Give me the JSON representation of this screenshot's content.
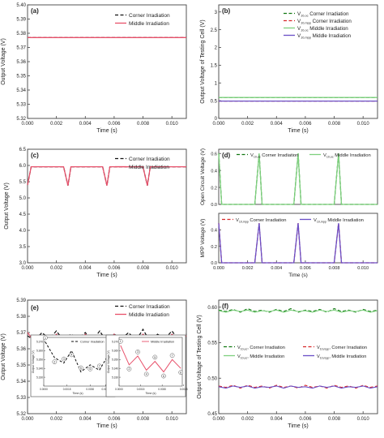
{
  "colors": {
    "corner": "#111111",
    "middle_red": "#e8506a",
    "voc_corner": "#117711",
    "voc_middle": "#7ed07e",
    "vmpp_corner": "#d62728",
    "vmpp_middle": "#6a4fc7",
    "axis": "#444444"
  },
  "chart_data": [
    {
      "panel": "(a)",
      "type": "line",
      "xlabel": "Time (s)",
      "ylabel": "Output Voltage (V)",
      "xlim": [
        0,
        0.011
      ],
      "ylim": [
        5.32,
        5.4
      ],
      "xticks": [
        "0.000",
        "0.002",
        "0.004",
        "0.006",
        "0.008",
        "0.010"
      ],
      "yticks": [
        "5.32",
        "5.33",
        "5.34",
        "5.35",
        "5.36",
        "5.37",
        "5.38",
        "5.39",
        "5.40"
      ],
      "legend_position": "top-right",
      "series": [
        {
          "name": "Corner Irradiation",
          "style": "dash",
          "color": "#111111",
          "x": [
            0,
            0.011
          ],
          "y": [
            5.377,
            5.377
          ]
        },
        {
          "name": "Middle Irradiation",
          "style": "solid",
          "color": "#e8506a",
          "x": [
            0,
            0.011
          ],
          "y": [
            5.377,
            5.377
          ]
        }
      ]
    },
    {
      "panel": "(b)",
      "type": "line",
      "xlabel": "Time (s)",
      "ylabel": "Output Voltage of Testing Cell (V)",
      "xlim": [
        0,
        0.011
      ],
      "ylim": [
        0,
        3.2
      ],
      "xticks": [
        "0.000",
        "0.002",
        "0.004",
        "0.006",
        "0.008",
        "0.010"
      ],
      "yticks": [
        "0",
        "0.5",
        "1",
        "1.5",
        "2",
        "2.5",
        "3"
      ],
      "legend_position": "top-right",
      "series": [
        {
          "name": "V",
          "sub": "10,oc",
          "suffix": " Corner Irradiation",
          "style": "dash",
          "color": "#117711",
          "x": [
            0,
            0.011
          ],
          "y": [
            0.59,
            0.59
          ]
        },
        {
          "name": "V",
          "sub": "10,mpp",
          "suffix": " Corner Irradiation",
          "style": "dash",
          "color": "#d62728",
          "x": [
            0,
            0.011
          ],
          "y": [
            0.49,
            0.49
          ]
        },
        {
          "name": "V",
          "sub": "10,oc",
          "suffix": " Middle Irradiation",
          "style": "solid",
          "color": "#7ed07e",
          "x": [
            0,
            0.011
          ],
          "y": [
            0.59,
            0.59
          ]
        },
        {
          "name": "V",
          "sub": "10,mpp",
          "suffix": " Middle Irradiation",
          "style": "solid",
          "color": "#6a4fc7",
          "x": [
            0,
            0.011
          ],
          "y": [
            0.49,
            0.49
          ]
        }
      ]
    },
    {
      "panel": "(c)",
      "type": "line",
      "xlabel": "Time (s)",
      "ylabel": "Output Voltage (V)",
      "xlim": [
        0,
        0.011
      ],
      "ylim": [
        3.0,
        6.5
      ],
      "xticks": [
        "0.000",
        "0.002",
        "0.004",
        "0.006",
        "0.008",
        "0.010"
      ],
      "yticks": [
        "3.0",
        "3.5",
        "4.0",
        "4.5",
        "5.0",
        "5.5",
        "6.0",
        "6.5"
      ],
      "legend_position": "top-right",
      "series": [
        {
          "name": "Corner Irradiation",
          "style": "dash",
          "color": "#111111",
          "x": [
            0,
            0.00025,
            0.0025,
            0.0028,
            0.003,
            0.0052,
            0.0055,
            0.0057,
            0.008,
            0.0083,
            0.0085,
            0.011
          ],
          "y": [
            5.4,
            5.96,
            5.96,
            5.38,
            5.96,
            5.96,
            5.38,
            5.96,
            5.96,
            5.38,
            5.96,
            5.96
          ]
        },
        {
          "name": "Middle Irradiation",
          "style": "solid",
          "color": "#e8506a",
          "x": [
            0,
            0.00025,
            0.0025,
            0.0028,
            0.003,
            0.0052,
            0.0055,
            0.0057,
            0.008,
            0.0083,
            0.0085,
            0.011
          ],
          "y": [
            5.4,
            5.96,
            5.96,
            5.38,
            5.96,
            5.96,
            5.38,
            5.96,
            5.96,
            5.38,
            5.96,
            5.96
          ]
        }
      ]
    },
    {
      "panel": "(d)",
      "type": "line",
      "xlabel": "",
      "ylabel": "Open Circuit Voltage (V)",
      "xlim": [
        0,
        0.011
      ],
      "ylim": [
        0,
        0.65
      ],
      "yticks": [
        "0.0",
        "0.2",
        "0.4",
        "0.6"
      ],
      "legend_position": "top",
      "series": [
        {
          "name": "V",
          "sub": "10,oc",
          "suffix": " Corner Irradiation",
          "style": "dash",
          "color": "#117711",
          "x": [
            0,
            0.0002,
            0.0025,
            0.0028,
            0.003,
            0.0052,
            0.0055,
            0.0057,
            0.008,
            0.0083,
            0.0085,
            0.011
          ],
          "y": [
            0.6,
            0,
            0,
            0.6,
            0,
            0,
            0.6,
            0,
            0,
            0.6,
            0,
            0
          ]
        },
        {
          "name": "V",
          "sub": "10,oc",
          "suffix": " Middle Irradiation",
          "style": "solid",
          "color": "#7ed07e",
          "x": [
            0,
            0.0002,
            0.0025,
            0.0028,
            0.003,
            0.0052,
            0.0055,
            0.0057,
            0.008,
            0.0083,
            0.0085,
            0.011
          ],
          "y": [
            0.6,
            0,
            0,
            0.6,
            0,
            0,
            0.6,
            0,
            0,
            0.6,
            0,
            0
          ]
        }
      ]
    },
    {
      "panel": "(d) lower",
      "type": "line",
      "xlabel": "Time (s)",
      "ylabel": "MPP Voltage (V)",
      "xlim": [
        0,
        0.011
      ],
      "ylim": [
        0,
        0.6
      ],
      "xticks": [
        "0.000",
        "0.002",
        "0.004",
        "0.006",
        "0.008",
        "0.010"
      ],
      "yticks": [
        "0.0",
        "0.2",
        "0.4"
      ],
      "legend_position": "top",
      "series": [
        {
          "name": "V",
          "sub": "10,mpp",
          "suffix": " Corner Irradiation",
          "style": "dash",
          "color": "#d62728",
          "x": [
            0,
            0.0002,
            0.0025,
            0.0028,
            0.003,
            0.0052,
            0.0055,
            0.0057,
            0.008,
            0.0083,
            0.0085,
            0.011
          ],
          "y": [
            0.48,
            0,
            0,
            0.48,
            0,
            0,
            0.48,
            0,
            0,
            0.48,
            0,
            0
          ]
        },
        {
          "name": "V",
          "sub": "10,mpp",
          "suffix": " Middle Irradiation",
          "style": "solid",
          "color": "#6a4fc7",
          "x": [
            0,
            0.0002,
            0.0025,
            0.0028,
            0.003,
            0.0052,
            0.0055,
            0.0057,
            0.008,
            0.0083,
            0.0085,
            0.011
          ],
          "y": [
            0.48,
            0,
            0,
            0.48,
            0,
            0,
            0.48,
            0,
            0,
            0.48,
            0,
            0
          ]
        }
      ]
    },
    {
      "panel": "(e)",
      "type": "line",
      "xlabel": "Time (s)",
      "ylabel": "Output Voltage (V)",
      "xlim": [
        0,
        0.011
      ],
      "ylim": [
        5.32,
        5.39
      ],
      "xticks": [
        "0.000",
        "0.002",
        "0.004",
        "0.006",
        "0.008",
        "0.010"
      ],
      "yticks": [
        "5.32",
        "5.33",
        "5.34",
        "5.35",
        "5.36",
        "5.37",
        "5.38",
        "5.39"
      ],
      "legend_position": "top-right",
      "series": [
        {
          "name": "Corner Irradiation",
          "style": "dash",
          "color": "#111111",
          "x": [
            0,
            0.0005,
            0.001,
            0.0015,
            0.002,
            0.0025,
            0.003,
            0.0035,
            0.004,
            0.0045,
            0.005,
            0.0055,
            0.006,
            0.0065,
            0.007,
            0.0075,
            0.008,
            0.0085,
            0.009,
            0.0095,
            0.01,
            0.0105,
            0.011
          ],
          "y": [
            5.368,
            5.365,
            5.37,
            5.366,
            5.371,
            5.365,
            5.369,
            5.366,
            5.37,
            5.365,
            5.371,
            5.364,
            5.369,
            5.366,
            5.37,
            5.365,
            5.372,
            5.364,
            5.369,
            5.366,
            5.371,
            5.365,
            5.369
          ]
        },
        {
          "name": "Middle Irradiation",
          "style": "solid",
          "color": "#e8506a",
          "x": [
            0,
            0.0005,
            0.001,
            0.0015,
            0.002,
            0.0025,
            0.003,
            0.0035,
            0.004,
            0.0045,
            0.005,
            0.0055,
            0.006,
            0.0065,
            0.007,
            0.0075,
            0.008,
            0.0085,
            0.009,
            0.0095,
            0.01,
            0.0105,
            0.011
          ],
          "y": [
            5.37,
            5.364,
            5.368,
            5.363,
            5.369,
            5.364,
            5.368,
            5.363,
            5.369,
            5.365,
            5.368,
            5.363,
            5.369,
            5.364,
            5.368,
            5.363,
            5.369,
            5.364,
            5.368,
            5.363,
            5.369,
            5.365,
            5.368
          ]
        }
      ],
      "insets": [
        {
          "legend": "Corner Irradiation",
          "xlabel": "Time (s)",
          "ylabel": "Output Voltage (V)",
          "xlim": [
            0,
            0.0044
          ],
          "ylim": [
            5.32,
            5.375
          ],
          "xticks": [
            "0.0000",
            "0.0015",
            "0.0030",
            "0.0040"
          ],
          "yticks": [
            "5.330",
            "5.340",
            "5.350",
            "5.360",
            "5.370"
          ],
          "style": "dash",
          "color": "#111111",
          "x": [
            0.0001,
            0.0007,
            0.0013,
            0.0018,
            0.0024,
            0.003,
            0.0036,
            0.0042
          ],
          "y": [
            5.37,
            5.352,
            5.346,
            5.36,
            5.336,
            5.344,
            5.338,
            5.356
          ],
          "point_labels": [
            "1",
            "2",
            "3",
            "4",
            "5",
            "6",
            "7",
            "8"
          ]
        },
        {
          "legend": "Middle Irradiation",
          "xlabel": "Time (s)",
          "ylabel": "Output Voltage (V)",
          "xlim": [
            0,
            0.0044
          ],
          "ylim": [
            5.32,
            5.375
          ],
          "xticks": [
            "0.0000",
            "0.0015",
            "0.0030",
            "0.0045"
          ],
          "yticks": [
            "5.330",
            "5.340",
            "5.350",
            "5.360",
            "5.370"
          ],
          "style": "solid",
          "color": "#e8506a",
          "x": [
            0.0001,
            0.0007,
            0.0013,
            0.0019,
            0.0025,
            0.0031,
            0.0037,
            0.0043
          ],
          "y": [
            5.366,
            5.344,
            5.354,
            5.338,
            5.348,
            5.336,
            5.35,
            5.34
          ],
          "point_labels": [
            "1",
            "2",
            "3",
            "4",
            "5",
            "6",
            "7",
            "8"
          ]
        }
      ]
    },
    {
      "panel": "(f)",
      "type": "line",
      "xlabel": "Time (s)",
      "ylabel": "Output Voltage of Testing Cell (V)",
      "xlim": [
        0,
        0.011
      ],
      "ylim": [
        0.45,
        0.61
      ],
      "xticks": [
        "0.000",
        "0.002",
        "0.004",
        "0.006",
        "0.008",
        "0.010"
      ],
      "yticks": [
        "0.45",
        "0.50",
        "0.55",
        "0.60"
      ],
      "legend_position": "center",
      "series": [
        {
          "name": "V",
          "sub": "10,oc",
          "suffix": ", Corner Irradiation",
          "style": "dash",
          "color": "#117711",
          "x": [
            0,
            0.0005,
            0.001,
            0.0015,
            0.002,
            0.0025,
            0.003,
            0.0035,
            0.004,
            0.0045,
            0.005,
            0.0055,
            0.006,
            0.0065,
            0.007,
            0.0075,
            0.008,
            0.0085,
            0.009,
            0.0095,
            0.01,
            0.0105,
            0.011
          ],
          "y": [
            0.596,
            0.594,
            0.597,
            0.593,
            0.598,
            0.594,
            0.596,
            0.593,
            0.597,
            0.594,
            0.598,
            0.593,
            0.596,
            0.594,
            0.597,
            0.593,
            0.598,
            0.594,
            0.596,
            0.593,
            0.597,
            0.594,
            0.596
          ]
        },
        {
          "name": "V",
          "sub": "10,mpp",
          "suffix": ", Corner Irradiation",
          "style": "dash",
          "color": "#d62728",
          "x": [
            0,
            0.0005,
            0.001,
            0.0015,
            0.002,
            0.0025,
            0.003,
            0.0035,
            0.004,
            0.0045,
            0.005,
            0.0055,
            0.006,
            0.0065,
            0.007,
            0.0075,
            0.008,
            0.0085,
            0.009,
            0.0095,
            0.01,
            0.0105,
            0.011
          ],
          "y": [
            0.489,
            0.487,
            0.49,
            0.486,
            0.49,
            0.487,
            0.489,
            0.486,
            0.49,
            0.487,
            0.489,
            0.486,
            0.49,
            0.487,
            0.489,
            0.486,
            0.49,
            0.487,
            0.489,
            0.486,
            0.49,
            0.487,
            0.489
          ]
        },
        {
          "name": "V",
          "sub": "10,oc",
          "suffix": ", Middle Irradiation",
          "style": "solid",
          "color": "#7ed07e",
          "x": [
            0,
            0.0005,
            0.001,
            0.0015,
            0.002,
            0.0025,
            0.003,
            0.0035,
            0.004,
            0.0045,
            0.005,
            0.0055,
            0.006,
            0.0065,
            0.007,
            0.0075,
            0.008,
            0.0085,
            0.009,
            0.0095,
            0.01,
            0.0105,
            0.011
          ],
          "y": [
            0.595,
            0.593,
            0.596,
            0.594,
            0.596,
            0.593,
            0.595,
            0.594,
            0.596,
            0.593,
            0.596,
            0.594,
            0.595,
            0.593,
            0.596,
            0.594,
            0.596,
            0.593,
            0.595,
            0.594,
            0.596,
            0.593,
            0.595
          ]
        },
        {
          "name": "V",
          "sub": "10,mpp",
          "suffix": ", Middle Irradiation",
          "style": "solid",
          "color": "#6a4fc7",
          "x": [
            0,
            0.0005,
            0.001,
            0.0015,
            0.002,
            0.0025,
            0.003,
            0.0035,
            0.004,
            0.0045,
            0.005,
            0.0055,
            0.006,
            0.0065,
            0.007,
            0.0075,
            0.008,
            0.0085,
            0.009,
            0.0095,
            0.01,
            0.0105,
            0.011
          ],
          "y": [
            0.488,
            0.486,
            0.489,
            0.487,
            0.489,
            0.486,
            0.488,
            0.487,
            0.489,
            0.486,
            0.489,
            0.487,
            0.488,
            0.486,
            0.489,
            0.487,
            0.489,
            0.486,
            0.488,
            0.487,
            0.489,
            0.486,
            0.488
          ]
        }
      ]
    }
  ]
}
